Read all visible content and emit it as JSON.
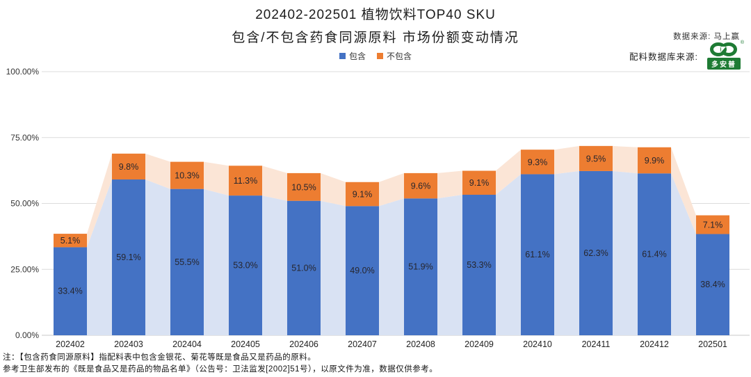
{
  "header": {
    "title_line1": "202402-202501 植物饮料TOP40 SKU",
    "title_line2": "包含/不包含药食同源原料 市场份额变动情况",
    "data_source": "数据来源: 马上赢",
    "ingredient_source_label": "配料数据库来源:",
    "logo_text": "多安普",
    "logo_reg": "®"
  },
  "legend": [
    {
      "label": "包含",
      "color": "#4472C4"
    },
    {
      "label": "不包含",
      "color": "#ED7D31"
    }
  ],
  "chart_data": {
    "type": "bar",
    "subtype": "stacked-bars-with-background-area",
    "title": "202402-202501 植物饮料TOP40 SKU 包含/不包含药食同源原料 市场份额变动情况",
    "categories": [
      "202402",
      "202403",
      "202404",
      "202405",
      "202406",
      "202407",
      "202408",
      "202409",
      "202410",
      "202411",
      "202412",
      "202501"
    ],
    "series": [
      {
        "name": "包含",
        "color": "#4472C4",
        "area_color": "#D9E2F3",
        "values": [
          33.4,
          59.1,
          55.5,
          53.0,
          51.0,
          49.0,
          51.9,
          53.3,
          61.1,
          62.3,
          61.4,
          38.4
        ]
      },
      {
        "name": "不包含",
        "color": "#ED7D31",
        "area_color": "#FBE5D6",
        "values": [
          5.1,
          9.8,
          10.3,
          11.3,
          10.5,
          9.1,
          9.6,
          9.1,
          9.3,
          9.5,
          9.9,
          7.1
        ]
      }
    ],
    "y_ticks": [
      "0.00%",
      "25.00%",
      "50.00%",
      "75.00%",
      "100.00%"
    ],
    "y_tick_values": [
      0,
      25,
      50,
      75,
      100
    ],
    "ylim": [
      0,
      100
    ],
    "grid": true,
    "legend_position": "top",
    "value_label_suffix": "%"
  },
  "colors": {
    "bar_blue": "#4472C4",
    "bar_orange": "#ED7D31",
    "area_blue": "#D9E2F3",
    "area_orange": "#FBE5D6",
    "gridline": "#dcdcdc",
    "axis_line": "#c8c8c8",
    "label_text": "#26262e",
    "logo_green": "#1e7b34"
  },
  "footnotes": {
    "line1": "注：【包含药食同源原料】指配料表中包含金银花、菊花等既是食品又是药品的原料。",
    "line2": "参考卫生部发布的《既是食品又是药品的物品名单》（公告号：卫法监发[2002]51号），以原文件为准，数据仅供参考。"
  }
}
